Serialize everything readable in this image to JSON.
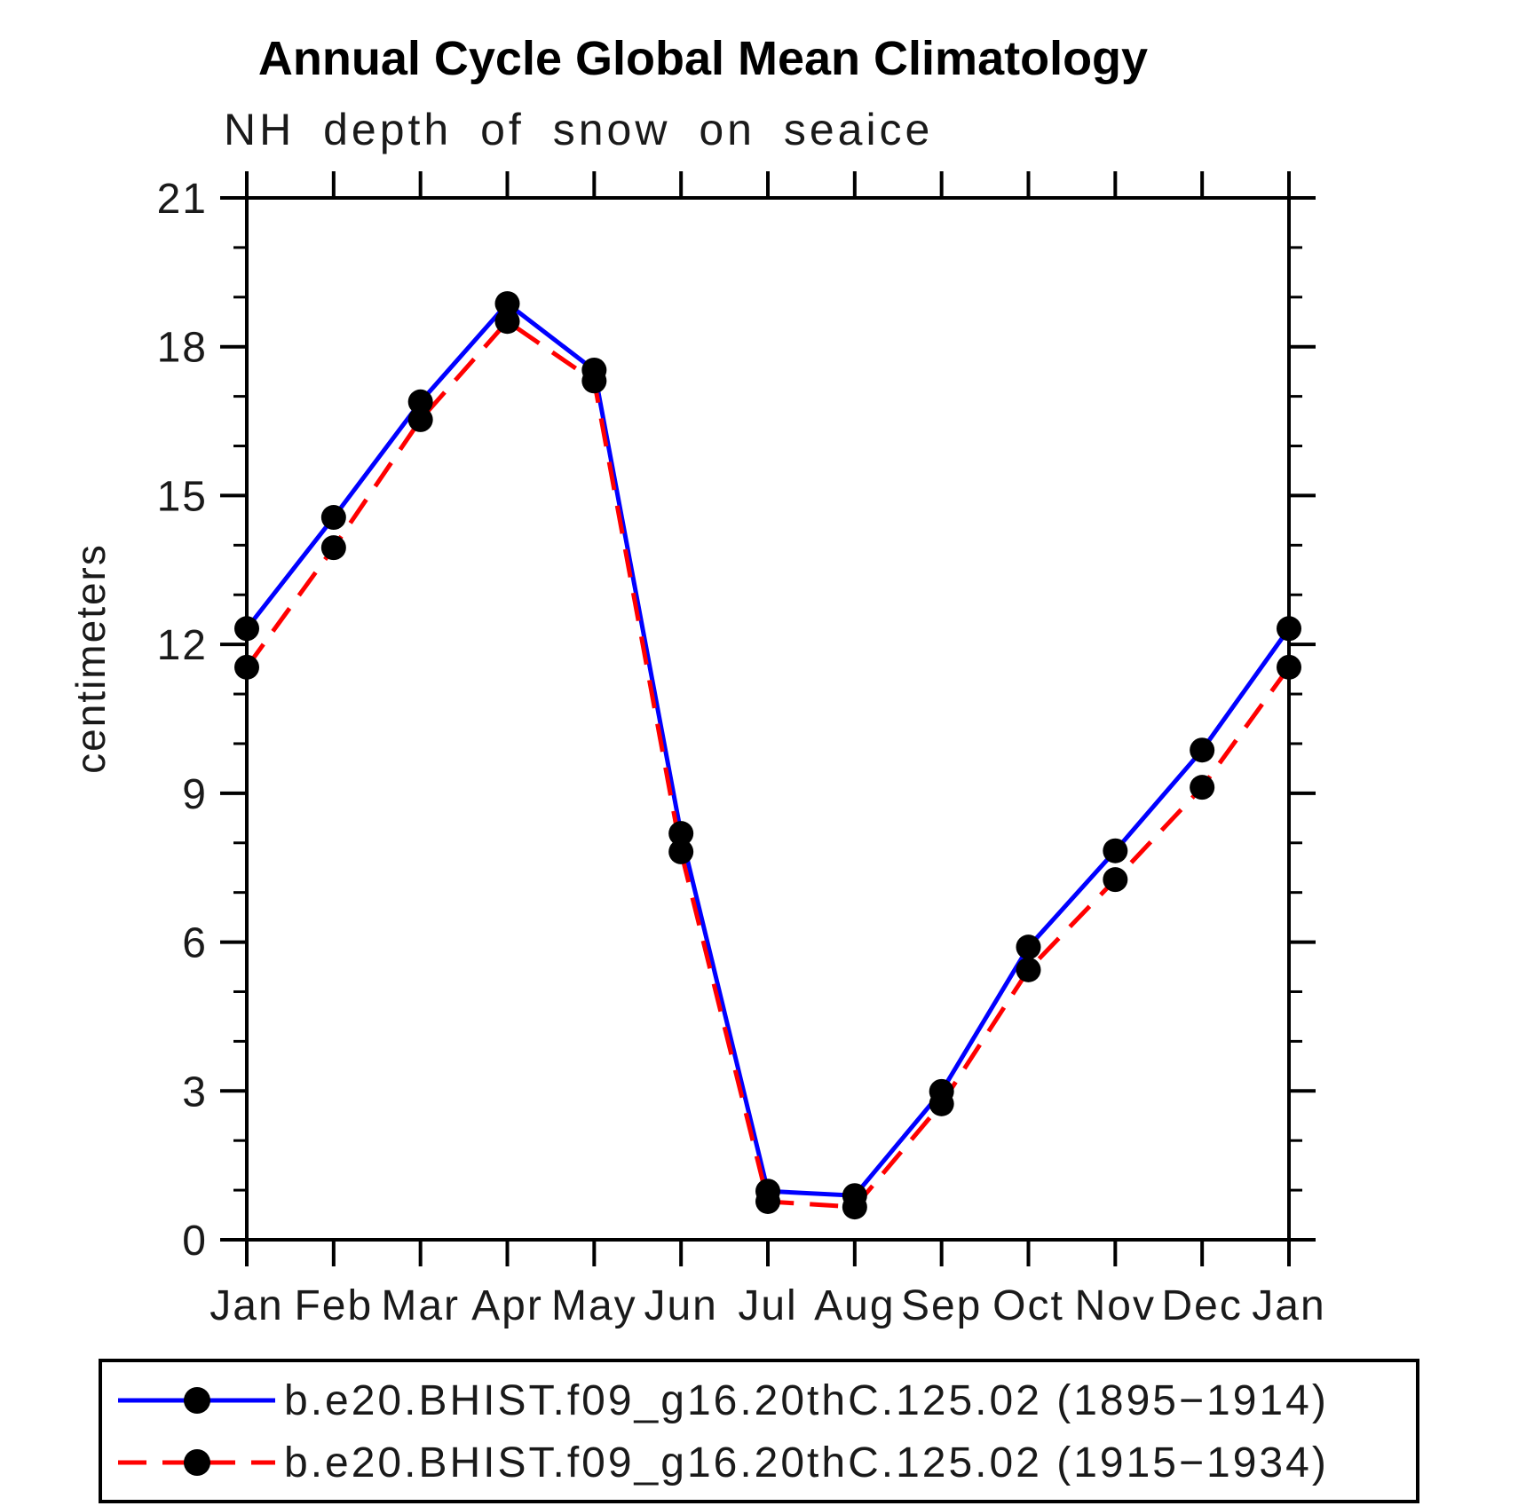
{
  "header": {
    "title": "Annual Cycle Global Mean Climatology",
    "subtitle": "NH depth of snow on seaice"
  },
  "axes": {
    "y_label": "centimeters",
    "y_tick_labels": [
      "0",
      "3",
      "6",
      "9",
      "12",
      "15",
      "18",
      "21"
    ],
    "x_tick_labels": [
      "Jan",
      "Feb",
      "Mar",
      "Apr",
      "May",
      "Jun",
      "Jul",
      "Aug",
      "Sep",
      "Oct",
      "Nov",
      "Dec",
      "Jan"
    ]
  },
  "colors": {
    "series1": "#0000ff",
    "series2": "#ff0000",
    "marker": "#000000",
    "axis": "#000000"
  },
  "chart_data": {
    "type": "line",
    "title": "Annual Cycle Global Mean Climatology",
    "subtitle": "NH depth of snow on seaice",
    "xlabel": "",
    "ylabel": "centimeters",
    "categories": [
      "Jan",
      "Feb",
      "Mar",
      "Apr",
      "May",
      "Jun",
      "Jul",
      "Aug",
      "Sep",
      "Oct",
      "Nov",
      "Dec",
      "Jan"
    ],
    "series": [
      {
        "name": "b.e20.BHIST.f09_g16.20thC.125.02 (1895−1914)",
        "color": "#0000ff",
        "line_style": "solid",
        "marker": "filled-circle",
        "marker_color": "#000000",
        "values": [
          12.32,
          14.56,
          16.89,
          18.87,
          17.53,
          8.19,
          0.98,
          0.89,
          2.99,
          5.9,
          7.84,
          9.87,
          12.32
        ]
      },
      {
        "name": "b.e20.BHIST.f09_g16.20thC.125.02 (1915−1934)",
        "color": "#ff0000",
        "line_style": "dashed",
        "marker": "filled-circle",
        "marker_color": "#000000",
        "values": [
          11.54,
          13.95,
          16.53,
          18.51,
          17.31,
          7.82,
          0.77,
          0.66,
          2.74,
          5.44,
          7.26,
          9.12,
          11.54
        ]
      }
    ],
    "ylim": [
      0,
      21
    ],
    "yticks_major": [
      0,
      3,
      6,
      9,
      12,
      15,
      18,
      21
    ],
    "ytick_minor_step": 1,
    "grid": false,
    "tick_style": "outward-all-four-sides",
    "legend_position": "bottom"
  }
}
